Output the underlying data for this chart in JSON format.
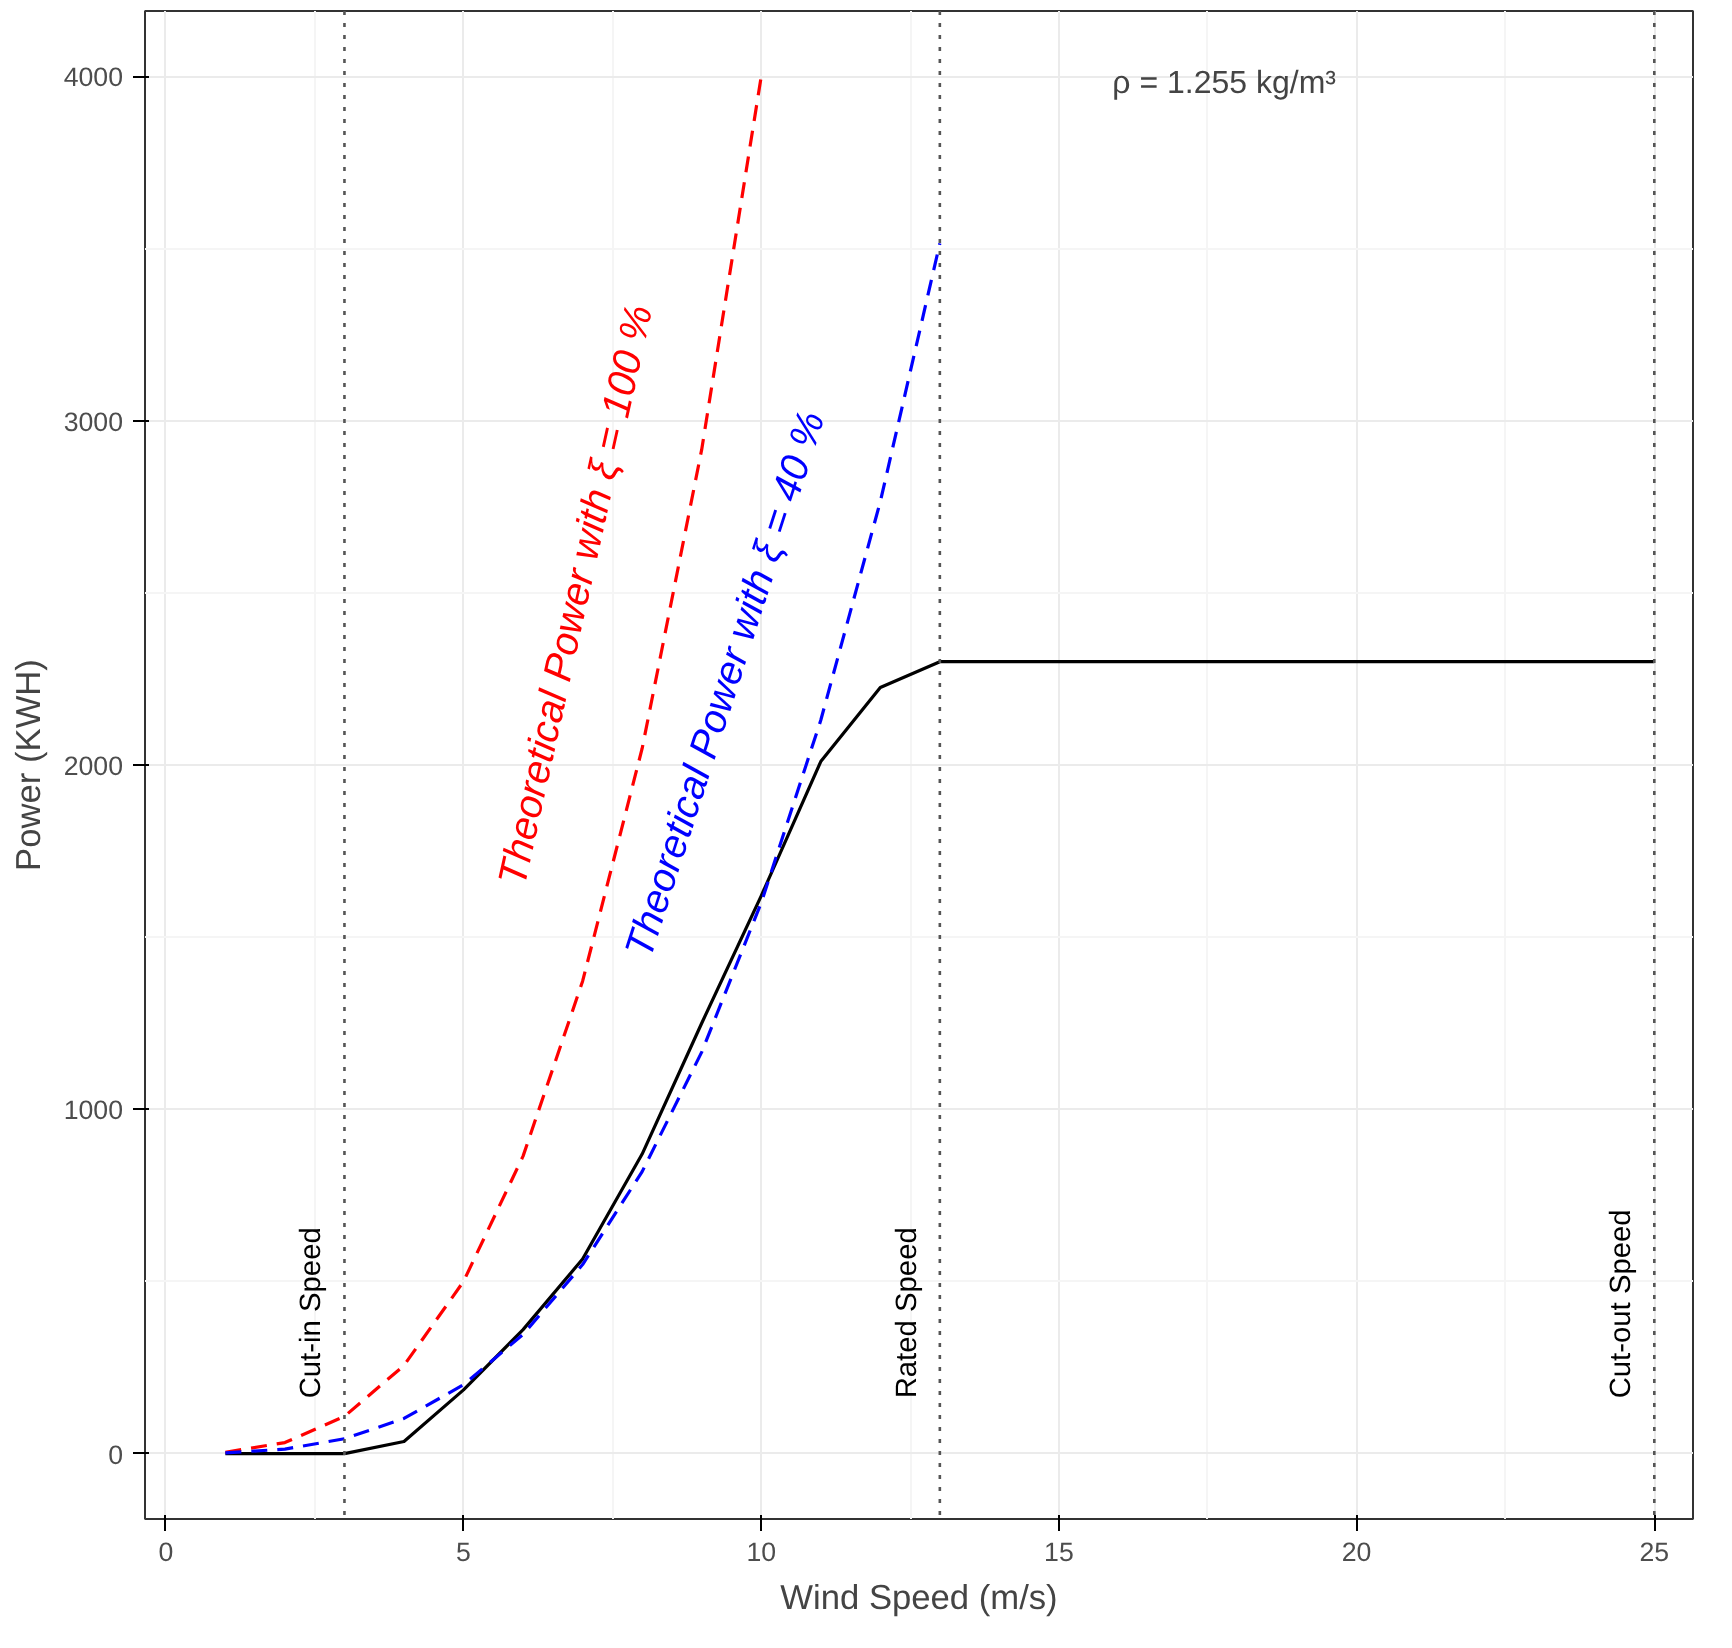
{
  "chart_data": {
    "type": "line",
    "xlabel": "Wind Speed (m/s)",
    "ylabel": "Power (KWH)",
    "xlim": [
      -0.35,
      25.65
    ],
    "ylim": [
      -190,
      4190
    ],
    "xticks": [
      0,
      5,
      10,
      15,
      20,
      25
    ],
    "yticks": [
      0,
      1000,
      2000,
      3000,
      4000
    ],
    "grid": true,
    "marker": "none",
    "series": [
      {
        "color": "#000000",
        "line_style": "solid",
        "x": [
          1,
          2,
          3,
          4,
          5,
          6,
          7,
          8,
          9,
          10,
          11,
          12,
          13,
          14,
          15,
          16,
          17,
          18,
          19,
          20,
          21,
          22,
          23,
          24,
          25
        ],
        "values": [
          0,
          0,
          0,
          35,
          185,
          360,
          565,
          870,
          1250,
          1620,
          2010,
          2225,
          2300,
          2300,
          2300,
          2300,
          2300,
          2300,
          2300,
          2300,
          2300,
          2300,
          2300,
          2300,
          2300
        ]
      },
      {
        "name": "Theoretical Power with ξ = 100 %",
        "color": "#ff0000",
        "line_style": "dashed",
        "x": [
          1,
          2,
          3,
          4,
          5,
          6,
          7,
          8,
          9,
          10
        ],
        "values": [
          4,
          32,
          108,
          256,
          500,
          864,
          1372,
          2048,
          2916,
          4000
        ]
      },
      {
        "name": "Theoretical Power with ξ = 40 %",
        "color": "#0000ff",
        "line_style": "dashed",
        "x": [
          1,
          2,
          3,
          4,
          5,
          6,
          7,
          8,
          9,
          10,
          11,
          12,
          13
        ],
        "values": [
          2,
          13,
          43,
          102,
          200,
          346,
          549,
          819,
          1166,
          1600,
          2130,
          2765,
          3515
        ]
      }
    ],
    "ref_lines": [
      {
        "axis": "x",
        "value": 3,
        "label": "Cut-in Speed",
        "color": "#555555",
        "line_style": "dotted"
      },
      {
        "axis": "x",
        "value": 13,
        "label": "Rated Speed",
        "color": "#555555",
        "line_style": "dotted"
      },
      {
        "axis": "x",
        "value": 25,
        "label": "Cut-out Speed",
        "color": "#555555",
        "line_style": "dotted"
      }
    ],
    "annotations": [
      "ρ = 1.255  kg/m³"
    ]
  }
}
